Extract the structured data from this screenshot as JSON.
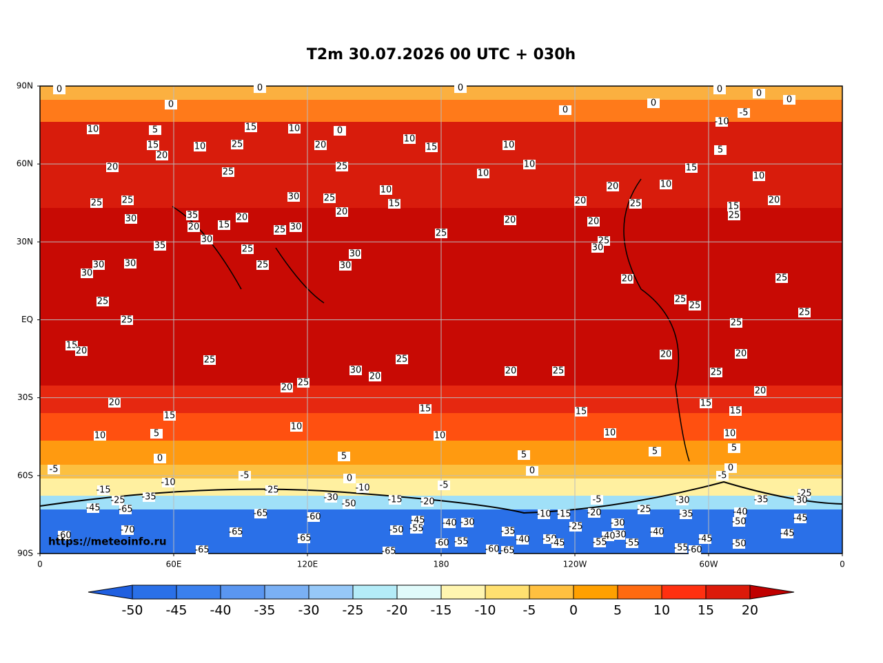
{
  "title": "T2m 30.07.2026 00 UTC + 030h",
  "watermark": "https://meteoinfo.ru",
  "map": {
    "lat_labels": [
      "90N",
      "60N",
      "30N",
      "EQ",
      "30S",
      "60S",
      "90S"
    ],
    "lon_labels": [
      "0",
      "60E",
      "120E",
      "180",
      "120W",
      "60W",
      "0"
    ],
    "contour_labels": [
      0,
      0,
      0,
      0,
      0,
      0,
      0,
      0,
      0,
      10,
      5,
      15,
      10,
      0,
      15,
      20,
      10,
      25,
      20,
      10,
      15,
      10,
      -5,
      -10,
      5,
      20,
      25,
      25,
      10,
      10,
      15,
      10,
      10,
      15,
      20,
      10,
      25,
      25,
      30,
      25,
      20,
      25,
      15,
      20,
      30,
      35,
      20,
      20,
      20,
      20,
      25,
      20,
      15,
      25,
      30,
      25,
      30,
      25,
      35,
      25,
      30,
      30,
      30,
      30,
      25,
      30,
      30,
      20,
      25,
      25,
      25,
      25,
      25,
      25,
      25,
      15,
      20,
      20,
      20,
      25,
      25,
      30,
      20,
      20,
      25,
      25,
      25,
      20,
      20,
      20,
      15,
      15,
      15,
      15,
      15,
      10,
      10,
      5,
      10,
      10,
      10,
      5,
      0,
      5,
      5,
      5,
      0,
      -5,
      -5,
      0,
      0,
      -5,
      -10,
      -10,
      -5,
      -15,
      -25,
      -25,
      -35,
      -25,
      -35,
      -30,
      -15,
      -20,
      -5,
      -30,
      -50,
      -45,
      -65,
      -25,
      -10,
      -15,
      -20,
      -40,
      -35,
      -30,
      -45,
      -65,
      -60,
      -45,
      -40,
      -30,
      -50,
      -70,
      -65,
      -50,
      -55,
      -25,
      -30,
      -35,
      -40,
      -45,
      -60,
      -65,
      -55,
      -40,
      -60,
      -50,
      -45,
      -30,
      -40,
      -55,
      -55,
      -45,
      -50,
      -65,
      -65,
      -60,
      -65,
      -55,
      -60
    ]
  },
  "colorbar": {
    "levels": [
      -50,
      -45,
      -40,
      -35,
      -30,
      -25,
      -20,
      -15,
      -10,
      -5,
      0,
      5,
      10,
      15,
      20
    ],
    "colors": [
      "#1f5fe0",
      "#2a70e8",
      "#3a80ee",
      "#5a96f0",
      "#7ab0f4",
      "#96c8f8",
      "#b4ecf8",
      "#e0fafa",
      "#fff5b0",
      "#ffe070",
      "#ffc040",
      "#ffa000",
      "#ff6a10",
      "#ff3010",
      "#dc1a0a",
      "#c00000"
    ]
  }
}
